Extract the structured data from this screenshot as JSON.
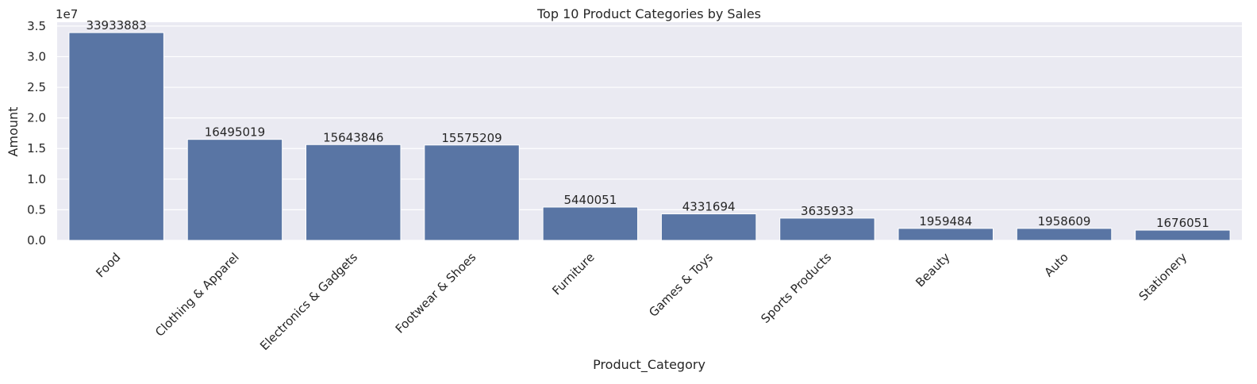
{
  "chart_data": {
    "type": "bar",
    "title": "Top 10 Product Categories by Sales",
    "xlabel": "Product_Category",
    "ylabel": "Amount",
    "y_offset_text": "1e7",
    "categories": [
      "Food",
      "Clothing & Apparel",
      "Electronics & Gadgets",
      "Footwear & Shoes",
      "Furniture",
      "Games & Toys",
      "Sports Products",
      "Beauty",
      "Auto",
      "Stationery"
    ],
    "values": [
      33933883,
      16495019,
      15643846,
      15575209,
      5440051,
      4331694,
      3635933,
      1959484,
      1958609,
      1676051
    ],
    "value_labels": [
      "33933883",
      "16495019",
      "15643846",
      "15575209",
      "5440051",
      "4331694",
      "3635933",
      "1959484",
      "1958609",
      "1676051"
    ],
    "yticks": [
      0,
      5000000,
      10000000,
      15000000,
      20000000,
      25000000,
      30000000,
      35000000
    ],
    "ytick_labels": [
      "0.0",
      "0.5",
      "1.0",
      "1.5",
      "2.0",
      "2.5",
      "3.0",
      "3.5"
    ],
    "ylim": [
      0,
      35630577
    ],
    "grid": true,
    "legend": "none",
    "colors": {
      "bar": "#5975a4",
      "plot_background": "#eaeaf2",
      "grid": "#ffffff",
      "text": "#262626"
    }
  }
}
